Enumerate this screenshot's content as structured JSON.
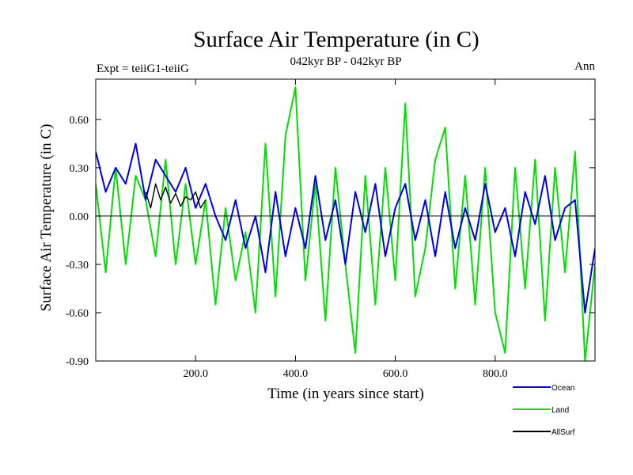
{
  "chart_data": {
    "type": "line",
    "title": "Surface Air Temperature (in C)",
    "subtitle_left": "Expt = teiiG1-teiiG",
    "subtitle_center": "042kyr BP - 042kyr BP",
    "subtitle_right": "Ann",
    "xlabel": "Time (in years since start)",
    "ylabel": "Surface Air Temperature (in C)",
    "xlim": [
      0,
      1000
    ],
    "ylim": [
      -0.9,
      0.85
    ],
    "x_ticks": [
      "200.0",
      "400.0",
      "600.0",
      "800.0"
    ],
    "x_tick_values": [
      200,
      400,
      600,
      800
    ],
    "y_ticks": [
      "0.60",
      "0.30",
      "0.00",
      "-0.30",
      "-0.60",
      "-0.90"
    ],
    "y_tick_values": [
      0.6,
      0.3,
      0.0,
      -0.3,
      -0.6,
      -0.9
    ],
    "zero_line": true,
    "grid": false,
    "legend_position": "bottom-right",
    "series": [
      {
        "name": "Land",
        "color": "#00e000",
        "x": [
          0,
          20,
          40,
          60,
          80,
          100,
          120,
          140,
          160,
          180,
          200,
          220,
          240,
          260,
          280,
          300,
          320,
          340,
          360,
          380,
          400,
          420,
          440,
          460,
          480,
          500,
          520,
          540,
          560,
          580,
          600,
          620,
          640,
          660,
          680,
          700,
          720,
          740,
          760,
          780,
          800,
          820,
          840,
          860,
          880,
          900,
          920,
          940,
          960,
          980,
          1000
        ],
        "values": [
          0.2,
          -0.35,
          0.3,
          -0.3,
          0.25,
          0.1,
          -0.25,
          0.35,
          -0.3,
          0.2,
          -0.3,
          0.1,
          -0.55,
          0.05,
          -0.4,
          -0.1,
          -0.6,
          0.45,
          -0.5,
          0.5,
          0.8,
          -0.4,
          0.2,
          -0.65,
          0.3,
          -0.3,
          -0.85,
          0.25,
          -0.55,
          0.3,
          -0.4,
          0.7,
          -0.5,
          -0.2,
          0.35,
          0.55,
          -0.45,
          0.25,
          -0.55,
          0.3,
          -0.6,
          -0.85,
          0.3,
          -0.45,
          0.35,
          -0.65,
          0.3,
          -0.35,
          0.4,
          -0.9,
          -0.3
        ]
      },
      {
        "name": "Ocean",
        "color": "#0000e6",
        "x": [
          0,
          20,
          40,
          60,
          80,
          100,
          120,
          140,
          160,
          180,
          200,
          220,
          240,
          260,
          280,
          300,
          320,
          340,
          360,
          380,
          400,
          420,
          440,
          460,
          480,
          500,
          520,
          540,
          560,
          580,
          600,
          620,
          640,
          660,
          680,
          700,
          720,
          740,
          760,
          780,
          800,
          820,
          840,
          860,
          880,
          900,
          920,
          940,
          960,
          980,
          1000
        ],
        "values": [
          0.4,
          0.15,
          0.3,
          0.2,
          0.45,
          0.1,
          0.35,
          0.25,
          0.15,
          0.3,
          0.05,
          0.2,
          0.0,
          -0.15,
          0.1,
          -0.2,
          0.0,
          -0.35,
          0.15,
          -0.25,
          0.05,
          -0.2,
          0.25,
          -0.15,
          0.1,
          -0.3,
          0.15,
          -0.1,
          0.2,
          -0.25,
          0.05,
          0.2,
          -0.15,
          0.1,
          -0.25,
          0.15,
          -0.2,
          0.05,
          -0.15,
          0.2,
          -0.1,
          0.05,
          -0.25,
          0.15,
          -0.05,
          0.25,
          -0.15,
          0.05,
          0.1,
          -0.6,
          -0.2
        ]
      },
      {
        "name": "AllSurf",
        "color": "#000000",
        "x": [
          100,
          110,
          120,
          130,
          140,
          150,
          160,
          170,
          180,
          190,
          200,
          210,
          220
        ],
        "values": [
          0.15,
          0.05,
          0.2,
          0.1,
          0.18,
          0.08,
          0.14,
          0.06,
          0.12,
          0.1,
          0.15,
          0.05,
          0.1
        ]
      }
    ]
  }
}
